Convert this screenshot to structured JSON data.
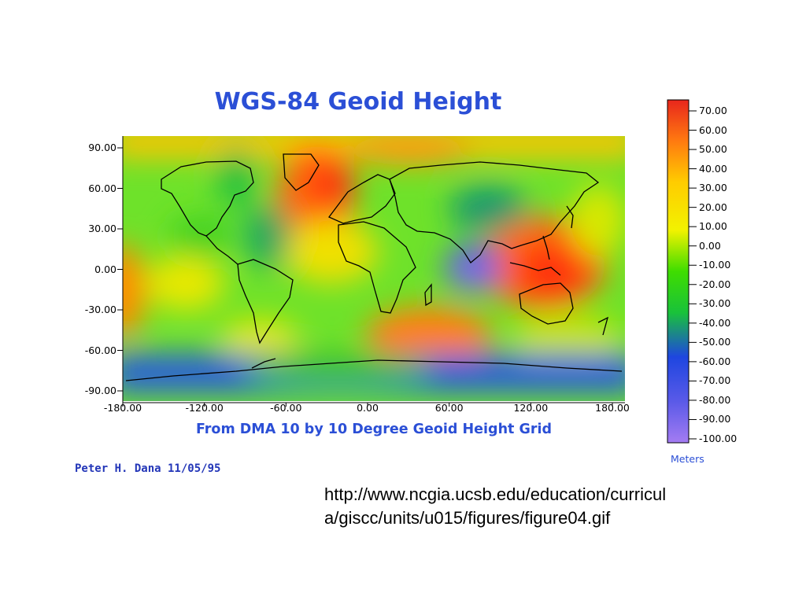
{
  "slide": {
    "source_line1": "http://www.ncgia.ucsb.edu/education/curricul",
    "source_line2": "a/giscc/units/u015/figures/figure04.gif"
  },
  "map": {
    "title": "WGS-84 Geoid Height",
    "subtitle": "From DMA 10 by 10 Degree Geoid Height Grid",
    "credit": "Peter H. Dana 11/05/95",
    "y_ticks": [
      "90.00",
      "60.00",
      "30.00",
      "0.00",
      "-30.00",
      "-60.00",
      "-90.00"
    ],
    "x_ticks": [
      "-180.00",
      "-120.00",
      "-60.00",
      "0.00",
      "60.00",
      "120.00",
      "180.00"
    ],
    "extent": {
      "lon": [
        -180,
        180
      ],
      "lat": [
        -90,
        90
      ]
    }
  },
  "colorbar": {
    "unit_label": "Meters",
    "ticks": [
      "70.00",
      "60.00",
      "50.00",
      "40.00",
      "30.00",
      "20.00",
      "10.00",
      "0.00",
      "-10.00",
      "-20.00",
      "-30.00",
      "-40.00",
      "-50.00",
      "-60.00",
      "-70.00",
      "-80.00",
      "-90.00",
      "-100.00"
    ],
    "range": [
      -100,
      70
    ],
    "colors": [
      "#e8261c",
      "#ff9900",
      "#ffee00",
      "#19d400",
      "#1e46e0",
      "#a078f0"
    ]
  }
}
